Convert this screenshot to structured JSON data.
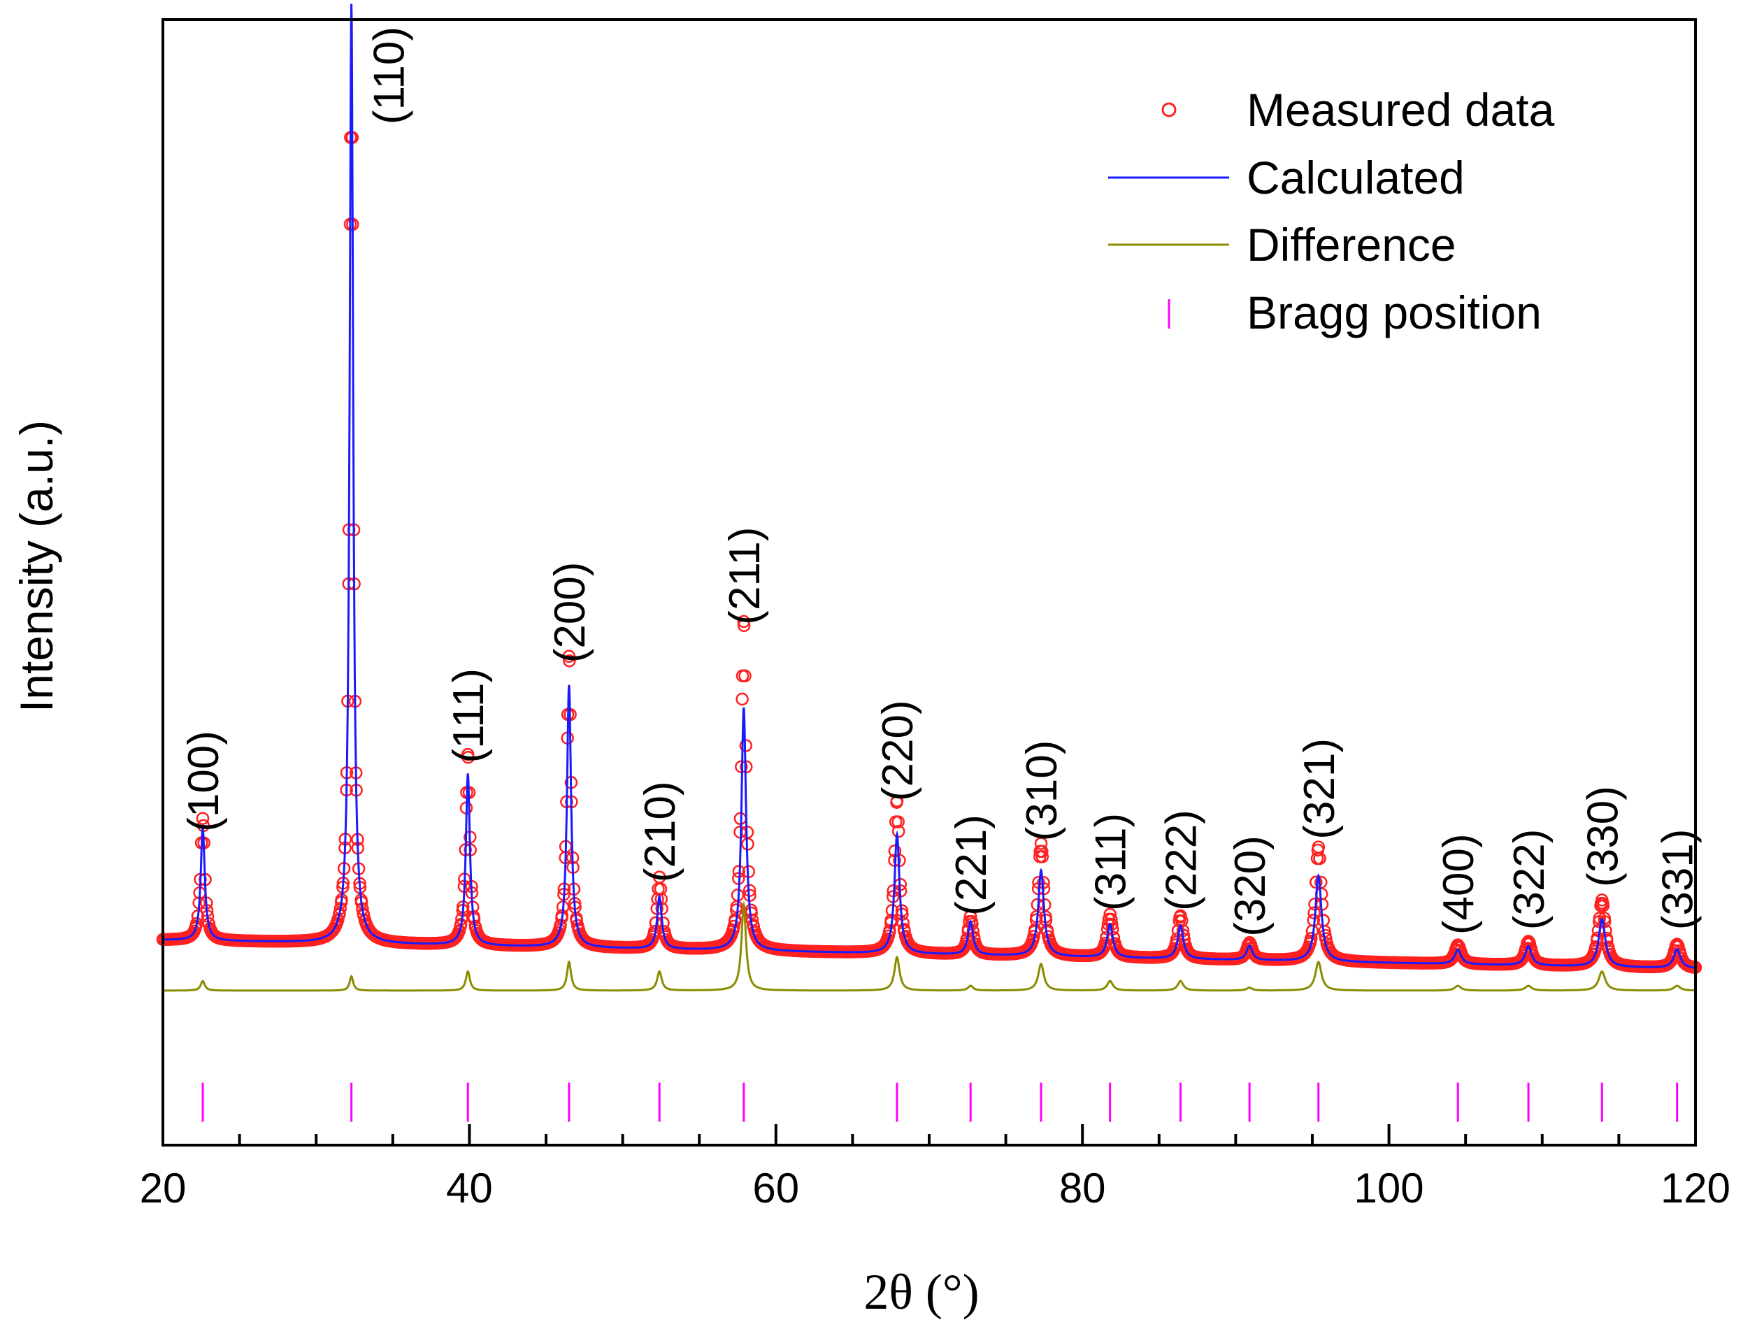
{
  "chart_data": {
    "type": "line",
    "title": "",
    "xlabel": "2θ (°)",
    "ylabel": "Intensity (a.u.)",
    "xlim": [
      20,
      120
    ],
    "ylim": [
      -0.18,
      1.0
    ],
    "x_ticks": [
      20,
      40,
      60,
      80,
      100,
      120
    ],
    "x_tick_labels": [
      "20",
      "40",
      "60",
      "80",
      "100",
      "120"
    ],
    "minor_tick_step": 5,
    "background_start": 0.035,
    "background_end": 0.005,
    "difference_offset": -0.018,
    "bragg_level": -0.135,
    "peaks": [
      {
        "hkl": "(100)",
        "x": 22.6,
        "measured": 0.128,
        "calculated": 0.118,
        "width": 0.16
      },
      {
        "hkl": "(110)",
        "x": 32.3,
        "measured": 1.0,
        "calculated": 0.985,
        "width": 0.14
      },
      {
        "hkl": "(111)",
        "x": 39.9,
        "measured": 0.2,
        "calculated": 0.18,
        "width": 0.16
      },
      {
        "hkl": "(200)",
        "x": 46.5,
        "measured": 0.305,
        "calculated": 0.275,
        "width": 0.16
      },
      {
        "hkl": "(210)",
        "x": 52.4,
        "measured": 0.075,
        "calculated": 0.055,
        "width": 0.18
      },
      {
        "hkl": "(211)",
        "x": 57.9,
        "measured": 0.345,
        "calculated": 0.255,
        "width": 0.18
      },
      {
        "hkl": "(220)",
        "x": 67.9,
        "measured": 0.16,
        "calculated": 0.125,
        "width": 0.2
      },
      {
        "hkl": "(221)",
        "x": 72.7,
        "measured": 0.04,
        "calculated": 0.035,
        "width": 0.2
      },
      {
        "hkl": "(310)",
        "x": 77.3,
        "measured": 0.118,
        "calculated": 0.09,
        "width": 0.22
      },
      {
        "hkl": "(311)",
        "x": 81.8,
        "measured": 0.045,
        "calculated": 0.035,
        "width": 0.22
      },
      {
        "hkl": "(222)",
        "x": 86.4,
        "measured": 0.045,
        "calculated": 0.035,
        "width": 0.22
      },
      {
        "hkl": "(320)",
        "x": 90.9,
        "measured": 0.018,
        "calculated": 0.015,
        "width": 0.22
      },
      {
        "hkl": "(321)",
        "x": 95.4,
        "measured": 0.12,
        "calculated": 0.09,
        "width": 0.24
      },
      {
        "hkl": "(400)",
        "x": 104.5,
        "measured": 0.02,
        "calculated": 0.015,
        "width": 0.25
      },
      {
        "hkl": "(322)",
        "x": 109.1,
        "measured": 0.025,
        "calculated": 0.02,
        "width": 0.25
      },
      {
        "hkl": "(330)",
        "x": 113.9,
        "measured": 0.07,
        "calculated": 0.05,
        "width": 0.26
      },
      {
        "hkl": "(331)",
        "x": 118.8,
        "measured": 0.025,
        "calculated": 0.02,
        "width": 0.26
      }
    ],
    "legend_position": "top-right",
    "series": [
      {
        "name": "Measured data",
        "type": "scatter",
        "color": "#ff2020"
      },
      {
        "name": "Calculated",
        "type": "line",
        "color": "#1a1aff"
      },
      {
        "name": "Difference",
        "type": "line",
        "color": "#8b8b00"
      },
      {
        "name": "Bragg position",
        "type": "marker",
        "color": "#ff00ff"
      }
    ]
  }
}
